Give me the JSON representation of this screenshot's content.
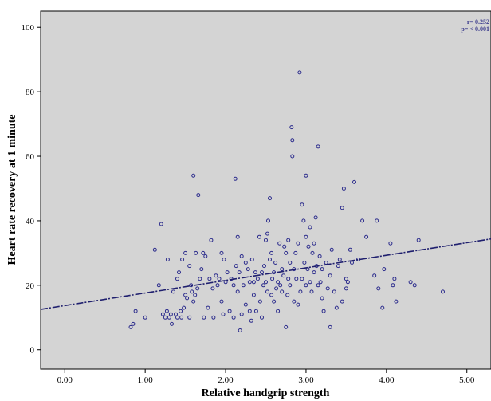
{
  "chart_data": {
    "type": "scatter",
    "title": "",
    "xlabel": "Relative handgrip strength",
    "ylabel": "Heart rate recovery at 1 minute",
    "xlim": [
      -0.3,
      5.3
    ],
    "ylim": [
      -6,
      105
    ],
    "x_ticks": [
      "0.00",
      "1.00",
      "2.00",
      "3.00",
      "4.00",
      "5.00"
    ],
    "y_ticks": [
      "0",
      "20",
      "40",
      "60",
      "80",
      "100"
    ],
    "annotation": {
      "r": "r= 0.252",
      "p": "p= < 0.001"
    },
    "fit_line": {
      "intercept": 13.7,
      "slope": 3.9
    },
    "grid": false,
    "colors": {
      "background": "#d4d4d4",
      "marker": "#2b2b8c",
      "fit_line": "#1f1f6e",
      "annotation": "#3a3a8c"
    },
    "points": [
      [
        0.82,
        7
      ],
      [
        0.85,
        8
      ],
      [
        0.88,
        12
      ],
      [
        1.0,
        10
      ],
      [
        1.12,
        31
      ],
      [
        1.17,
        20
      ],
      [
        1.2,
        39
      ],
      [
        1.22,
        11
      ],
      [
        1.25,
        10
      ],
      [
        1.27,
        12
      ],
      [
        1.28,
        28
      ],
      [
        1.3,
        10
      ],
      [
        1.32,
        11
      ],
      [
        1.33,
        8
      ],
      [
        1.35,
        18
      ],
      [
        1.38,
        11
      ],
      [
        1.4,
        22
      ],
      [
        1.4,
        10
      ],
      [
        1.42,
        24
      ],
      [
        1.44,
        12
      ],
      [
        1.45,
        10
      ],
      [
        1.46,
        28
      ],
      [
        1.48,
        13
      ],
      [
        1.5,
        17
      ],
      [
        1.5,
        30
      ],
      [
        1.52,
        16
      ],
      [
        1.55,
        10
      ],
      [
        1.55,
        26
      ],
      [
        1.57,
        20
      ],
      [
        1.58,
        18
      ],
      [
        1.6,
        15
      ],
      [
        1.6,
        54
      ],
      [
        1.62,
        17
      ],
      [
        1.63,
        30
      ],
      [
        1.65,
        19
      ],
      [
        1.66,
        48
      ],
      [
        1.68,
        22
      ],
      [
        1.7,
        25
      ],
      [
        1.72,
        30
      ],
      [
        1.73,
        10
      ],
      [
        1.75,
        29
      ],
      [
        1.78,
        13
      ],
      [
        1.8,
        22
      ],
      [
        1.82,
        34
      ],
      [
        1.84,
        19
      ],
      [
        1.85,
        10
      ],
      [
        1.88,
        23
      ],
      [
        1.9,
        20
      ],
      [
        1.92,
        22
      ],
      [
        1.95,
        15
      ],
      [
        1.95,
        30
      ],
      [
        1.97,
        11
      ],
      [
        1.98,
        28
      ],
      [
        2.0,
        21
      ],
      [
        2.02,
        24
      ],
      [
        2.05,
        12
      ],
      [
        2.07,
        22
      ],
      [
        2.1,
        10
      ],
      [
        2.1,
        20
      ],
      [
        2.12,
        53
      ],
      [
        2.13,
        26
      ],
      [
        2.15,
        18
      ],
      [
        2.15,
        35
      ],
      [
        2.17,
        24
      ],
      [
        2.18,
        6
      ],
      [
        2.2,
        11
      ],
      [
        2.2,
        29
      ],
      [
        2.22,
        20
      ],
      [
        2.25,
        14
      ],
      [
        2.25,
        27
      ],
      [
        2.28,
        25
      ],
      [
        2.3,
        12
      ],
      [
        2.3,
        21
      ],
      [
        2.32,
        9
      ],
      [
        2.33,
        28
      ],
      [
        2.35,
        21
      ],
      [
        2.35,
        17
      ],
      [
        2.37,
        24
      ],
      [
        2.38,
        12
      ],
      [
        2.4,
        22
      ],
      [
        2.42,
        35
      ],
      [
        2.43,
        15
      ],
      [
        2.45,
        24
      ],
      [
        2.45,
        10
      ],
      [
        2.47,
        20
      ],
      [
        2.48,
        26
      ],
      [
        2.5,
        34
      ],
      [
        2.5,
        21
      ],
      [
        2.52,
        18
      ],
      [
        2.52,
        36
      ],
      [
        2.53,
        40
      ],
      [
        2.55,
        47
      ],
      [
        2.55,
        28
      ],
      [
        2.57,
        17
      ],
      [
        2.57,
        30
      ],
      [
        2.58,
        22
      ],
      [
        2.6,
        15
      ],
      [
        2.6,
        24
      ],
      [
        2.62,
        27
      ],
      [
        2.63,
        19
      ],
      [
        2.65,
        21
      ],
      [
        2.65,
        12
      ],
      [
        2.67,
        33
      ],
      [
        2.68,
        20
      ],
      [
        2.7,
        18
      ],
      [
        2.7,
        25
      ],
      [
        2.72,
        23
      ],
      [
        2.73,
        32
      ],
      [
        2.75,
        7
      ],
      [
        2.75,
        30
      ],
      [
        2.77,
        17
      ],
      [
        2.78,
        22
      ],
      [
        2.78,
        34
      ],
      [
        2.8,
        20
      ],
      [
        2.8,
        27
      ],
      [
        2.82,
        69
      ],
      [
        2.83,
        60
      ],
      [
        2.83,
        65
      ],
      [
        2.85,
        15
      ],
      [
        2.85,
        25
      ],
      [
        2.87,
        30
      ],
      [
        2.88,
        22
      ],
      [
        2.9,
        14
      ],
      [
        2.9,
        33
      ],
      [
        2.92,
        86
      ],
      [
        2.93,
        18
      ],
      [
        2.95,
        22
      ],
      [
        2.95,
        45
      ],
      [
        2.97,
        40
      ],
      [
        2.98,
        27
      ],
      [
        3.0,
        20
      ],
      [
        3.0,
        54
      ],
      [
        3.0,
        35
      ],
      [
        3.02,
        25
      ],
      [
        3.03,
        32
      ],
      [
        3.05,
        38
      ],
      [
        3.05,
        21
      ],
      [
        3.07,
        18
      ],
      [
        3.08,
        30
      ],
      [
        3.1,
        33
      ],
      [
        3.1,
        24
      ],
      [
        3.12,
        41
      ],
      [
        3.13,
        26
      ],
      [
        3.15,
        20
      ],
      [
        3.15,
        63
      ],
      [
        3.17,
        29
      ],
      [
        3.18,
        21
      ],
      [
        3.2,
        25
      ],
      [
        3.2,
        16
      ],
      [
        3.22,
        12
      ],
      [
        3.25,
        27
      ],
      [
        3.27,
        19
      ],
      [
        3.3,
        23
      ],
      [
        3.3,
        7
      ],
      [
        3.32,
        31
      ],
      [
        3.35,
        18
      ],
      [
        3.38,
        13
      ],
      [
        3.4,
        26
      ],
      [
        3.42,
        28
      ],
      [
        3.45,
        44
      ],
      [
        3.45,
        15
      ],
      [
        3.47,
        50
      ],
      [
        3.5,
        22
      ],
      [
        3.5,
        19
      ],
      [
        3.52,
        21
      ],
      [
        3.55,
        31
      ],
      [
        3.57,
        27
      ],
      [
        3.6,
        52
      ],
      [
        3.65,
        28
      ],
      [
        3.7,
        40
      ],
      [
        3.75,
        35
      ],
      [
        3.85,
        23
      ],
      [
        3.88,
        40
      ],
      [
        3.9,
        19
      ],
      [
        3.95,
        13
      ],
      [
        3.97,
        25
      ],
      [
        4.05,
        33
      ],
      [
        4.08,
        20
      ],
      [
        4.1,
        22
      ],
      [
        4.12,
        15
      ],
      [
        4.3,
        21
      ],
      [
        4.35,
        20
      ],
      [
        4.4,
        34
      ],
      [
        4.7,
        18
      ]
    ]
  }
}
